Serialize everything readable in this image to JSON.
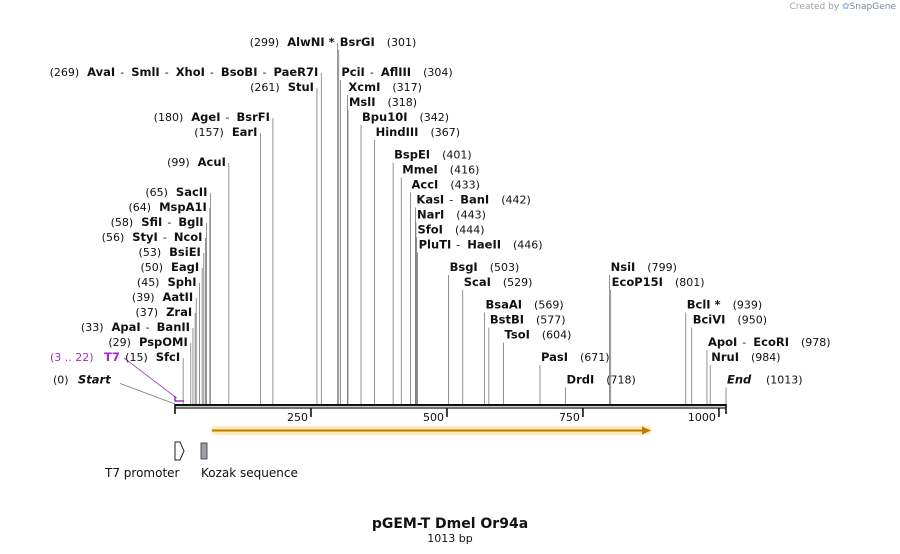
{
  "watermark": {
    "prefix": "Created by",
    "name": "SnapGene"
  },
  "title": "pGEM-T Dmel Or94a",
  "length_label": "1013 bp",
  "total_bp": 1013,
  "ruler": {
    "ticks": [
      {
        "pos": 250,
        "label": "250"
      },
      {
        "pos": 500,
        "label": "500"
      },
      {
        "pos": 750,
        "label": "750"
      },
      {
        "pos": 1000,
        "label": "1000"
      }
    ]
  },
  "left_labels": [
    {
      "row": 0,
      "pos_label": "(299)",
      "names": [
        "AlwNI *"
      ],
      "site": 299
    },
    {
      "row": 2,
      "pos_label": "(269)",
      "names": [
        "AvaI",
        "SmlI",
        "XhoI",
        "BsoBI",
        "PaeR7I"
      ],
      "site": 269
    },
    {
      "row": 3,
      "pos_label": "(261)",
      "names": [
        "StuI"
      ],
      "site": 261
    },
    {
      "row": 5,
      "pos_label": "(180)",
      "names": [
        "AgeI",
        "BsrFI"
      ],
      "site": 180
    },
    {
      "row": 6,
      "pos_label": "(157)",
      "names": [
        "EarI"
      ],
      "site": 157
    },
    {
      "row": 8,
      "pos_label": "(99)",
      "names": [
        "AcuI"
      ],
      "site": 99
    },
    {
      "row": 10,
      "pos_label": "(65)",
      "names": [
        "SacII"
      ],
      "site": 65
    },
    {
      "row": 11,
      "pos_label": "(64)",
      "names": [
        "MspA1I"
      ],
      "site": 64
    },
    {
      "row": 12,
      "pos_label": "(58)",
      "names": [
        "SfiI",
        "BglI"
      ],
      "site": 58
    },
    {
      "row": 13,
      "pos_label": "(56)",
      "names": [
        "StyI",
        "NcoI"
      ],
      "site": 56
    },
    {
      "row": 14,
      "pos_label": "(53)",
      "names": [
        "BsiEI"
      ],
      "site": 53
    },
    {
      "row": 15,
      "pos_label": "(50)",
      "names": [
        "EagI"
      ],
      "site": 50
    },
    {
      "row": 16,
      "pos_label": "(45)",
      "names": [
        "SphI"
      ],
      "site": 45
    },
    {
      "row": 17,
      "pos_label": "(39)",
      "names": [
        "AatII"
      ],
      "site": 39
    },
    {
      "row": 18,
      "pos_label": "(37)",
      "names": [
        "ZraI"
      ],
      "site": 37
    },
    {
      "row": 19,
      "pos_label": "(33)",
      "names": [
        "ApaI",
        "BanII"
      ],
      "site": 33
    },
    {
      "row": 20,
      "pos_label": "(29)",
      "names": [
        "PspOMI"
      ],
      "site": 29
    },
    {
      "row": 21,
      "pos_label": "(15)",
      "names": [
        "SfcI"
      ],
      "site": 15
    }
  ],
  "right_labels": [
    {
      "row": 0,
      "names": [
        "BsrGI"
      ],
      "pos_label": "(301)",
      "site": 301
    },
    {
      "row": 2,
      "names": [
        "PciI",
        "AflIII"
      ],
      "pos_label": "(304)",
      "site": 304
    },
    {
      "row": 3,
      "names": [
        "XcmI"
      ],
      "pos_label": "(317)",
      "site": 317
    },
    {
      "row": 4,
      "names": [
        "MslI"
      ],
      "pos_label": "(318)",
      "site": 318
    },
    {
      "row": 5,
      "names": [
        "Bpu10I"
      ],
      "pos_label": "(342)",
      "site": 342
    },
    {
      "row": 6,
      "names": [
        "HindIII"
      ],
      "pos_label": "(367)",
      "site": 367
    },
    {
      "row": 7.5,
      "names": [
        "BspEI"
      ],
      "pos_label": "(401)",
      "site": 401
    },
    {
      "row": 8.5,
      "names": [
        "MmeI"
      ],
      "pos_label": "(416)",
      "site": 416
    },
    {
      "row": 9.5,
      "names": [
        "AccI"
      ],
      "pos_label": "(433)",
      "site": 433
    },
    {
      "row": 10.5,
      "names": [
        "KasI",
        "BanI"
      ],
      "pos_label": "(442)",
      "site": 442
    },
    {
      "row": 11.5,
      "names": [
        "NarI"
      ],
      "pos_label": "(443)",
      "site": 443
    },
    {
      "row": 12.5,
      "names": [
        "SfoI"
      ],
      "pos_label": "(444)",
      "site": 444
    },
    {
      "row": 13.5,
      "names": [
        "PluTI",
        "HaeII"
      ],
      "pos_label": "(446)",
      "site": 446
    },
    {
      "row": 15,
      "names": [
        "BsgI"
      ],
      "pos_label": "(503)",
      "site": 503
    },
    {
      "row": 16,
      "names": [
        "ScaI"
      ],
      "pos_label": "(529)",
      "site": 529
    },
    {
      "row": 17.5,
      "names": [
        "BsaAI"
      ],
      "pos_label": "(569)",
      "site": 569
    },
    {
      "row": 18.5,
      "names": [
        "BstBI"
      ],
      "pos_label": "(577)",
      "site": 577
    },
    {
      "row": 19.5,
      "names": [
        "TsoI"
      ],
      "pos_label": "(604)",
      "site": 604
    },
    {
      "row": 21,
      "names": [
        "PasI"
      ],
      "pos_label": "(671)",
      "site": 671
    },
    {
      "row": 22.5,
      "names": [
        "DrdI"
      ],
      "pos_label": "(718)",
      "site": 718
    },
    {
      "row": 15,
      "names": [
        "NsiI"
      ],
      "pos_label": "(799)",
      "site": 799
    },
    {
      "row": 16,
      "names": [
        "EcoP15I"
      ],
      "pos_label": "(801)",
      "site": 801
    },
    {
      "row": 17.5,
      "names": [
        "BclI *"
      ],
      "pos_label": "(939)",
      "site": 939
    },
    {
      "row": 18.5,
      "names": [
        "BciVI"
      ],
      "pos_label": "(950)",
      "site": 950
    },
    {
      "row": 20,
      "names": [
        "ApoI",
        "EcoRI"
      ],
      "pos_label": "(978)",
      "site": 978
    },
    {
      "row": 21,
      "names": [
        "NruI"
      ],
      "pos_label": "(984)",
      "site": 984
    }
  ],
  "special_labels": {
    "start": {
      "pos_label": "(0)",
      "name": "Start"
    },
    "t7": {
      "pos_label": "(3 .. 22)",
      "name": "T7"
    },
    "end": {
      "name": "End",
      "pos_label": "(1013)"
    }
  },
  "features": {
    "t7_promoter": "T7 promoter",
    "kozak": "Kozak sequence"
  },
  "colors": {
    "primer": "#9b30c8",
    "orf_arrow": "#c07a00",
    "orf_glow": "#ffe2a0",
    "kozak": "#9aa0a6"
  }
}
